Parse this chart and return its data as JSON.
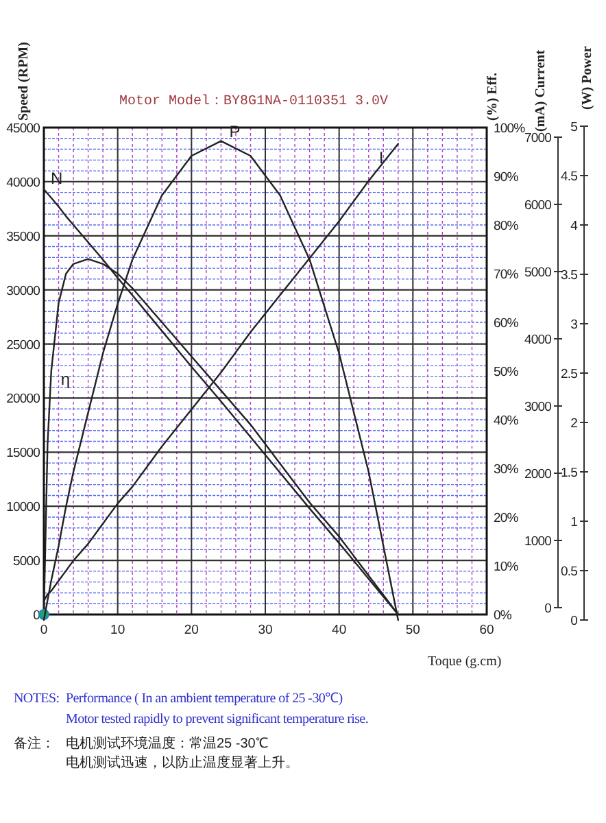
{
  "chart_data": [
    {
      "type": "line",
      "title": "Motor Model：BY8G1NA-0110351  3.0V",
      "xlabel": "Toque (g.cm)",
      "ylabel": "Speed (RPM)",
      "y2label": "(%) Eff.",
      "y3label": "(mA) Current",
      "x": [
        0,
        0.5,
        1,
        2,
        3,
        4,
        6,
        8,
        10,
        12,
        16,
        20,
        24,
        28,
        32,
        36,
        40,
        44,
        48
      ],
      "series": [
        {
          "name": "N",
          "color": "#222222",
          "values": [
            39300,
            38900,
            38500,
            37700,
            36800,
            36000,
            34400,
            32800,
            31100,
            29500,
            26200,
            22900,
            19700,
            16400,
            13100,
            9800,
            6600,
            3300,
            0
          ]
        },
        {
          "name": "η",
          "color": "#222222",
          "axis": "y2",
          "values": [
            0,
            35,
            50,
            64,
            70,
            72,
            73,
            72,
            70,
            67,
            60,
            53,
            46,
            39,
            31,
            23,
            16,
            8,
            0
          ]
        },
        {
          "name": "I",
          "color": "#222222",
          "axis": "y3",
          "values": [
            100,
            200,
            250,
            400,
            550,
            700,
            950,
            1250,
            1550,
            1800,
            2400,
            2950,
            3500,
            4100,
            4650,
            5200,
            5750,
            6350,
            6900
          ]
        },
        {
          "type": "scatter",
          "color": "#1aa36b",
          "x": [
            0
          ],
          "values": [
            0
          ]
        }
      ],
      "xlim": [
        0,
        60
      ],
      "xticks": [
        0,
        10,
        20,
        30,
        40,
        50,
        60
      ],
      "ylim": [
        0,
        45000
      ],
      "yticks": [
        0,
        5000,
        10000,
        15000,
        20000,
        25000,
        30000,
        35000,
        40000,
        45000
      ],
      "y2lim": [
        0,
        100
      ],
      "y2ticks": [
        {
          "value": 0,
          "label": "0%"
        },
        {
          "value": 10,
          "label": "10%"
        },
        {
          "value": 20,
          "label": "20%"
        },
        {
          "value": 30,
          "label": "30%"
        },
        {
          "value": 40,
          "label": "40%"
        },
        {
          "value": 50,
          "label": "50%"
        },
        {
          "value": 60,
          "label": "60%"
        },
        {
          "value": 70,
          "label": "70%"
        },
        {
          "value": 80,
          "label": "80%"
        },
        {
          "value": 90,
          "label": "90%"
        },
        {
          "value": 100,
          "label": "100%"
        }
      ],
      "y3lim": [
        0,
        7000
      ],
      "y3ticks": [
        0,
        1000,
        2000,
        3000,
        4000,
        5000,
        6000,
        7000
      ],
      "grid": true,
      "annotations": [
        "NOTES:",
        "Performance ( In an ambient temperature of 25 -30℃)",
        "Motor tested rapidly to prevent significant temperature rise.",
        "备注：",
        "电机测试环境温度：常温25 -30℃",
        "电机测试迅速，以防止温度显著上升。"
      ]
    },
    {
      "type": "line",
      "ylabel": "(W) Power",
      "tick_labels": "y",
      "x": [
        0,
        0.5,
        1,
        2,
        3,
        4,
        6,
        8,
        10,
        12,
        16,
        20,
        24,
        28,
        32,
        36,
        40,
        44,
        48
      ],
      "series": [
        {
          "name": "P",
          "color": "#222222",
          "values": [
            0,
            0.2,
            0.4,
            0.75,
            1.15,
            1.5,
            2.1,
            2.7,
            3.2,
            3.65,
            4.3,
            4.7,
            4.85,
            4.7,
            4.3,
            3.65,
            2.7,
            1.5,
            0
          ]
        }
      ],
      "xlim": [
        0,
        60
      ],
      "ylim": [
        0,
        5
      ],
      "yticks": [
        0,
        0.5,
        1,
        1.5,
        2,
        2.5,
        3,
        3.5,
        4,
        4.5,
        5
      ]
    }
  ]
}
